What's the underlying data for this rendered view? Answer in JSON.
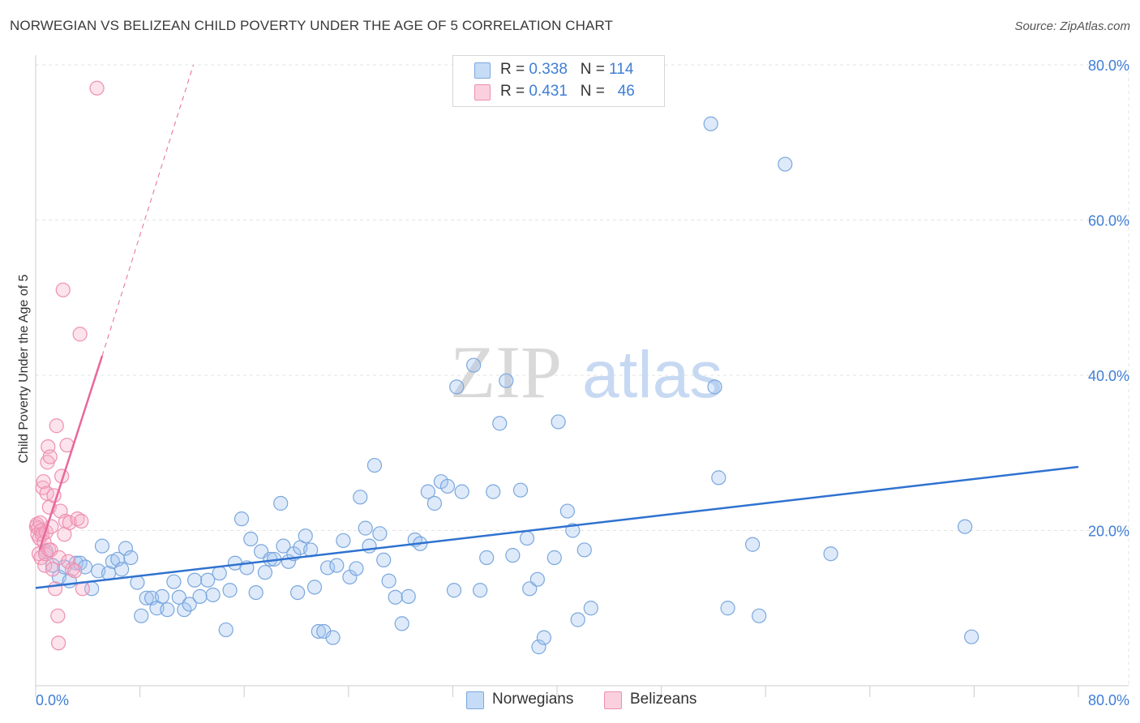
{
  "title": "NORWEGIAN VS BELIZEAN CHILD POVERTY UNDER THE AGE OF 5 CORRELATION CHART",
  "source": "Source: ZipAtlas.com",
  "watermark": {
    "zip": "ZIP",
    "atlas": "atlas"
  },
  "colors": {
    "norwegian_fill": "rgba(160,196,240,0.35)",
    "norwegian_stroke": "#7aa7dd",
    "norwegian_line": "#2f72d0",
    "belizean_fill": "rgba(246,176,200,0.35)",
    "belizean_stroke": "#ee8fb0",
    "belizean_line": "#e8689a",
    "tick_text": "#3f7ed6",
    "grid": "#e3e3e3"
  },
  "legend": {
    "rows": [
      {
        "r_label": "R = ",
        "r_value": "0.338",
        "n_label": "N = ",
        "n_value": "114"
      },
      {
        "r_label": "R = ",
        "r_value": "0.431",
        "n_label": "N = ",
        "n_value": "46"
      }
    ],
    "bottom": [
      "Norwegians",
      "Belizeans"
    ]
  },
  "chart_data": {
    "type": "scatter",
    "title": "NORWEGIAN VS BELIZEAN CHILD POVERTY UNDER THE AGE OF 5 CORRELATION CHART",
    "xlabel": "",
    "ylabel": "Child Poverty Under the Age of 5",
    "xlim": [
      0,
      80
    ],
    "ylim": [
      0,
      80
    ],
    "x_ticks": [
      "0.0%",
      "80.0%"
    ],
    "y_ticks": [
      "20.0%",
      "40.0%",
      "60.0%",
      "80.0%"
    ],
    "y_tick_values": [
      20,
      40,
      60,
      80
    ],
    "grid": true,
    "legend_position": "top-center",
    "series": [
      {
        "name": "Norwegians",
        "R": 0.338,
        "N": 114,
        "trend": {
          "x": [
            0,
            80
          ],
          "y": [
            12.6,
            28.2
          ]
        },
        "points": [
          [
            0.8,
            17.3
          ],
          [
            1.3,
            15.5
          ],
          [
            1.8,
            14.0
          ],
          [
            2.2,
            15.3
          ],
          [
            2.6,
            13.5
          ],
          [
            3.1,
            15.8
          ],
          [
            3.4,
            15.8
          ],
          [
            3.8,
            15.3
          ],
          [
            4.3,
            12.5
          ],
          [
            4.8,
            14.8
          ],
          [
            5.1,
            18.0
          ],
          [
            5.6,
            14.5
          ],
          [
            5.9,
            16.0
          ],
          [
            6.3,
            16.3
          ],
          [
            6.6,
            15.0
          ],
          [
            6.9,
            17.7
          ],
          [
            7.3,
            16.5
          ],
          [
            7.8,
            13.3
          ],
          [
            8.1,
            9.0
          ],
          [
            8.5,
            11.3
          ],
          [
            8.9,
            11.3
          ],
          [
            9.3,
            10.0
          ],
          [
            9.7,
            11.5
          ],
          [
            10.1,
            9.8
          ],
          [
            10.6,
            13.4
          ],
          [
            11.0,
            11.4
          ],
          [
            11.4,
            9.8
          ],
          [
            11.8,
            10.5
          ],
          [
            12.2,
            13.6
          ],
          [
            12.6,
            11.5
          ],
          [
            13.2,
            13.6
          ],
          [
            13.6,
            11.7
          ],
          [
            14.1,
            14.5
          ],
          [
            14.6,
            7.2
          ],
          [
            14.9,
            12.3
          ],
          [
            15.3,
            15.8
          ],
          [
            15.8,
            21.5
          ],
          [
            16.2,
            15.2
          ],
          [
            16.5,
            18.9
          ],
          [
            16.9,
            12.0
          ],
          [
            17.3,
            17.3
          ],
          [
            17.6,
            14.6
          ],
          [
            18.0,
            16.3
          ],
          [
            18.3,
            16.3
          ],
          [
            18.8,
            23.5
          ],
          [
            19.0,
            18.0
          ],
          [
            19.4,
            16.0
          ],
          [
            19.8,
            17.0
          ],
          [
            20.1,
            12.0
          ],
          [
            20.3,
            17.8
          ],
          [
            20.7,
            19.3
          ],
          [
            21.1,
            17.5
          ],
          [
            21.4,
            12.7
          ],
          [
            21.7,
            7.0
          ],
          [
            22.1,
            7.0
          ],
          [
            22.4,
            15.2
          ],
          [
            22.8,
            6.2
          ],
          [
            23.1,
            15.5
          ],
          [
            23.6,
            18.7
          ],
          [
            24.1,
            14.0
          ],
          [
            24.6,
            15.1
          ],
          [
            24.9,
            24.3
          ],
          [
            25.3,
            20.3
          ],
          [
            25.6,
            18.0
          ],
          [
            26.0,
            28.4
          ],
          [
            26.4,
            19.6
          ],
          [
            26.7,
            16.2
          ],
          [
            27.1,
            13.5
          ],
          [
            27.6,
            11.4
          ],
          [
            28.1,
            8.0
          ],
          [
            28.6,
            11.5
          ],
          [
            29.1,
            18.8
          ],
          [
            29.5,
            18.3
          ],
          [
            30.1,
            25.0
          ],
          [
            30.6,
            23.5
          ],
          [
            31.1,
            26.3
          ],
          [
            31.6,
            25.7
          ],
          [
            32.1,
            12.3
          ],
          [
            32.3,
            38.5
          ],
          [
            32.7,
            25.0
          ],
          [
            33.6,
            41.3
          ],
          [
            34.1,
            12.3
          ],
          [
            34.6,
            16.5
          ],
          [
            35.1,
            25.0
          ],
          [
            35.6,
            33.8
          ],
          [
            36.1,
            39.3
          ],
          [
            36.6,
            16.8
          ],
          [
            37.2,
            25.2
          ],
          [
            37.7,
            19.0
          ],
          [
            37.9,
            12.5
          ],
          [
            38.5,
            13.7
          ],
          [
            38.6,
            5.0
          ],
          [
            39.0,
            6.2
          ],
          [
            39.8,
            16.5
          ],
          [
            40.1,
            34.0
          ],
          [
            40.8,
            22.5
          ],
          [
            41.2,
            20.0
          ],
          [
            41.6,
            8.5
          ],
          [
            42.1,
            17.5
          ],
          [
            42.6,
            10.0
          ],
          [
            51.8,
            72.4
          ],
          [
            52.1,
            38.5
          ],
          [
            52.4,
            26.8
          ],
          [
            53.1,
            10.0
          ],
          [
            55.0,
            18.2
          ],
          [
            55.5,
            9.0
          ],
          [
            57.5,
            67.2
          ],
          [
            61.0,
            17.0
          ],
          [
            71.3,
            20.5
          ],
          [
            71.8,
            6.3
          ]
        ]
      },
      {
        "name": "Belizeans",
        "R": 0.431,
        "N": 46,
        "trend": {
          "x": [
            0.3,
            5.1
          ],
          "y": [
            17.5,
            42.5
          ],
          "dashed_to": [
            12.1,
            80.0
          ]
        },
        "points": [
          [
            0.05,
            20.5
          ],
          [
            0.1,
            20.8
          ],
          [
            0.15,
            19.5
          ],
          [
            0.2,
            20.3
          ],
          [
            0.25,
            17.0
          ],
          [
            0.3,
            19.0
          ],
          [
            0.35,
            21.0
          ],
          [
            0.4,
            16.5
          ],
          [
            0.45,
            20.0
          ],
          [
            0.5,
            19.5
          ],
          [
            0.55,
            25.5
          ],
          [
            0.6,
            26.3
          ],
          [
            0.65,
            18.5
          ],
          [
            0.7,
            15.5
          ],
          [
            0.75,
            17.0
          ],
          [
            0.8,
            19.8
          ],
          [
            0.85,
            24.8
          ],
          [
            0.9,
            28.8
          ],
          [
            0.95,
            30.8
          ],
          [
            1.0,
            17.5
          ],
          [
            1.05,
            23.0
          ],
          [
            1.1,
            29.5
          ],
          [
            1.15,
            17.5
          ],
          [
            1.2,
            20.5
          ],
          [
            1.3,
            15.0
          ],
          [
            1.4,
            24.5
          ],
          [
            1.5,
            12.5
          ],
          [
            1.6,
            33.5
          ],
          [
            1.7,
            9.0
          ],
          [
            1.75,
            5.5
          ],
          [
            1.8,
            16.5
          ],
          [
            1.9,
            22.5
          ],
          [
            2.0,
            27.0
          ],
          [
            2.1,
            51.0
          ],
          [
            2.2,
            19.5
          ],
          [
            2.3,
            21.2
          ],
          [
            2.4,
            31.0
          ],
          [
            2.5,
            16.0
          ],
          [
            2.6,
            21.0
          ],
          [
            2.8,
            15.0
          ],
          [
            3.0,
            14.8
          ],
          [
            3.2,
            21.5
          ],
          [
            3.4,
            45.3
          ],
          [
            3.5,
            21.2
          ],
          [
            3.6,
            12.5
          ],
          [
            4.7,
            77.0
          ]
        ]
      }
    ]
  }
}
